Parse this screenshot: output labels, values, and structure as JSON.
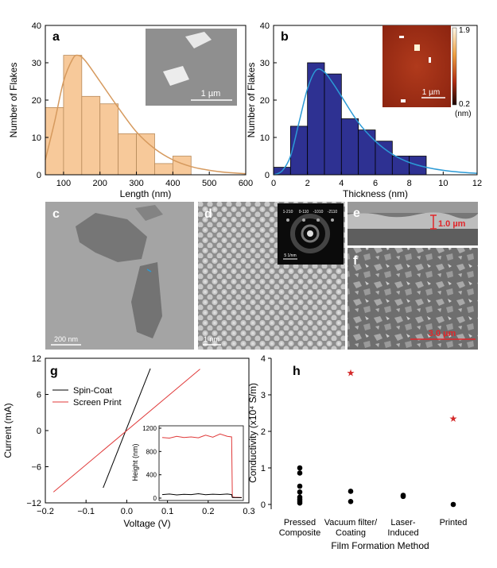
{
  "panel_letters": [
    "a",
    "b",
    "c",
    "d",
    "e",
    "f",
    "g",
    "h"
  ],
  "chart_data": [
    {
      "panel": "a",
      "type": "bar",
      "xlabel": "Length (nm)",
      "ylabel": "Number of Flakes",
      "xlim": [
        50,
        600
      ],
      "ylim": [
        0,
        40
      ],
      "xticks": [
        100,
        200,
        300,
        400,
        500,
        600
      ],
      "yticks": [
        0,
        10,
        20,
        30,
        40
      ],
      "bin_edges": [
        50,
        100,
        150,
        200,
        250,
        300,
        350,
        400,
        450
      ],
      "values": [
        18,
        32,
        21,
        19,
        11,
        11,
        3,
        5
      ],
      "fit_points": [
        [
          50,
          4
        ],
        [
          75,
          14
        ],
        [
          100,
          25
        ],
        [
          125,
          31
        ],
        [
          140,
          32
        ],
        [
          160,
          30.5
        ],
        [
          200,
          25
        ],
        [
          250,
          18
        ],
        [
          300,
          11.5
        ],
        [
          350,
          7
        ],
        [
          400,
          4
        ],
        [
          450,
          2.2
        ],
        [
          500,
          1.2
        ],
        [
          550,
          0.6
        ],
        [
          600,
          0.3
        ]
      ],
      "bar_color": "#f7c99a",
      "fit_color": "#d69a5e",
      "inset": {
        "type": "SEM image",
        "scale_bar": "1 µm"
      }
    },
    {
      "panel": "b",
      "type": "bar",
      "xlabel": "Thickness (nm)",
      "ylabel": "Number of Flakes",
      "xlim": [
        0,
        12
      ],
      "ylim": [
        0,
        40
      ],
      "xticks": [
        0,
        2,
        4,
        6,
        8,
        10,
        12
      ],
      "yticks": [
        0,
        10,
        20,
        30,
        40
      ],
      "bin_edges": [
        0,
        1,
        2,
        3,
        4,
        5,
        6,
        7,
        8,
        9
      ],
      "values": [
        2,
        13,
        30,
        27,
        15,
        12,
        9,
        5,
        5
      ],
      "fit_points": [
        [
          0,
          0
        ],
        [
          0.5,
          1
        ],
        [
          1,
          5
        ],
        [
          1.5,
          14
        ],
        [
          2,
          23
        ],
        [
          2.5,
          28
        ],
        [
          3,
          27.5
        ],
        [
          3.5,
          24.5
        ],
        [
          4,
          21
        ],
        [
          5,
          14
        ],
        [
          6,
          9
        ],
        [
          7,
          5.5
        ],
        [
          8,
          3.3
        ],
        [
          9,
          2
        ],
        [
          10,
          1.2
        ],
        [
          11,
          0.7
        ],
        [
          12,
          0.4
        ]
      ],
      "bar_color": "#2e3192",
      "fit_color": "#2b9ad6",
      "inset": {
        "type": "AFM height map",
        "scale_bar": "1 µm",
        "colorbar_max": "1.9",
        "colorbar_min": "0.2",
        "colorbar_unit": "(nm)"
      }
    },
    {
      "panel": "g",
      "type": "line",
      "xlabel": "Voltage (V)",
      "ylabel": "Current (mA)",
      "xlim": [
        -0.2,
        0.3
      ],
      "ylim": [
        -12,
        12
      ],
      "xticks": [
        -0.2,
        -0.1,
        0.0,
        0.1,
        0.2,
        0.3
      ],
      "xtick_labels": [
        "−0.2",
        "−0.1",
        "0.0",
        "0.1",
        "0.2",
        "0.3"
      ],
      "yticks": [
        -12,
        -6,
        0,
        6,
        12
      ],
      "ytick_labels": [
        "−12",
        "−6",
        "0",
        "6",
        "12"
      ],
      "series": [
        {
          "name": "Spin-Coat",
          "color": "#000000",
          "x": [
            -0.058,
            0.058
          ],
          "y": [
            -9.5,
            10.3
          ]
        },
        {
          "name": "Screen Print",
          "color": "#e03a3a",
          "x": [
            -0.18,
            0.18
          ],
          "y": [
            -10.2,
            10.2
          ]
        }
      ],
      "legend_location": "top-left",
      "inset": {
        "ylabel": "Height (nm)",
        "ylim": [
          0,
          1200
        ],
        "yticks": [
          0,
          400,
          800,
          1200
        ],
        "series": [
          {
            "name": "Screen Print",
            "color": "#e03a3a",
            "x": [
              0,
              0.1,
              0.2,
              0.3,
              0.4,
              0.5,
              0.6,
              0.7,
              0.8,
              0.9,
              0.96,
              0.97,
              1.0,
              1.1
            ],
            "y": [
              1040,
              1030,
              1060,
              1040,
              1050,
              1035,
              1080,
              1045,
              1100,
              1060,
              1050,
              20,
              15,
              10
            ]
          },
          {
            "name": "Spin-Coat",
            "color": "#000000",
            "x": [
              0,
              0.1,
              0.2,
              0.3,
              0.4,
              0.5,
              0.6,
              0.7,
              0.8,
              0.9,
              0.96,
              0.97,
              1.0,
              1.1
            ],
            "y": [
              60,
              70,
              55,
              65,
              60,
              75,
              58,
              66,
              62,
              70,
              60,
              10,
              8,
              6
            ]
          }
        ]
      }
    },
    {
      "panel": "h",
      "type": "scatter",
      "xlabel": "Film Formation Method",
      "ylabel": "Conductivity (x10⁴ S/m)",
      "ylim": [
        0,
        4
      ],
      "yticks": [
        0,
        1,
        2,
        3,
        4
      ],
      "categories": [
        "Pressed\nComposite",
        "Vacuum filter/\nCoating",
        "Laser-\nInduced",
        "Printed"
      ],
      "points": [
        {
          "category": 0,
          "values": [
            1.0,
            0.86,
            0.5,
            0.34,
            0.2,
            0.14,
            0.09,
            0.04
          ]
        },
        {
          "category": 1,
          "values": [
            0.36,
            0.08
          ]
        },
        {
          "category": 2,
          "values": [
            0.25,
            0.22
          ]
        },
        {
          "category": 3,
          "values": [
            0.0
          ]
        }
      ],
      "highlights": [
        {
          "category": 1,
          "value": 3.6,
          "marker": "star",
          "color": "#d42a2a"
        },
        {
          "category": 3,
          "value": 2.35,
          "marker": "star",
          "color": "#d42a2a"
        }
      ]
    }
  ],
  "images": {
    "c": {
      "type": "TEM image",
      "scale_bar": "200 nm"
    },
    "d": {
      "type": "HRTEM lattice",
      "scale_bar": "1 nm",
      "fft_labels": [
        "1-210",
        "0-110",
        "-1010",
        "-2110"
      ],
      "fft_scale": "5 1/nm"
    },
    "e": {
      "type": "SEM cross-section",
      "thickness_label": "1.0 µm"
    },
    "f": {
      "type": "SEM top view",
      "scale_bar": "3.0 µm"
    }
  },
  "colors": {
    "red_annotation": "#e0262a",
    "axis": "#000000"
  }
}
